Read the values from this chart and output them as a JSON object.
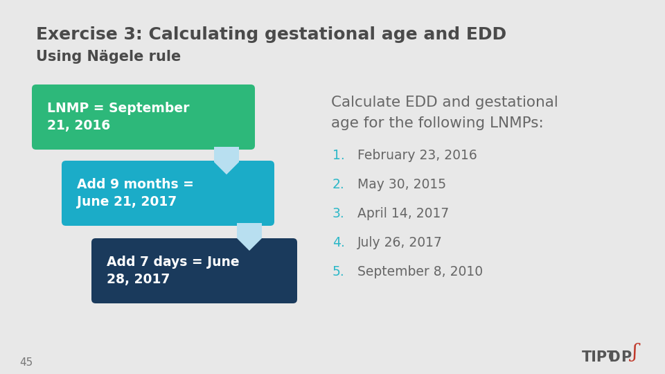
{
  "title_line1": "Exercise 3: Calculating gestational age and EDD",
  "title_line2": "Using Nägele rule",
  "title_color": "#4a4a4a",
  "bg_color": "#e8e8e8",
  "box1_text": "LNMP = September\n21, 2016",
  "box2_text": "Add 9 months =\nJune 21, 2017",
  "box3_text": "Add 7 days = June\n28, 2017",
  "box1_color": "#2db87a",
  "box2_color": "#1bacc8",
  "box3_color": "#1a3a5c",
  "arrow_color": "#b8dff0",
  "right_header_line1": "Calculate EDD and gestational",
  "right_header_line2": "age for the following LNMPs:",
  "right_header_color": "#666666",
  "list_numbers_color": "#2db8c8",
  "list_items": [
    "February 23, 2016",
    "May 30, 2015",
    "April 14, 2017",
    "July 26, 2017",
    "September 8, 2010"
  ],
  "list_color": "#666666",
  "page_number": "45",
  "tiptop_color": "#555555",
  "tiptop_flame_color": "#c0392b"
}
